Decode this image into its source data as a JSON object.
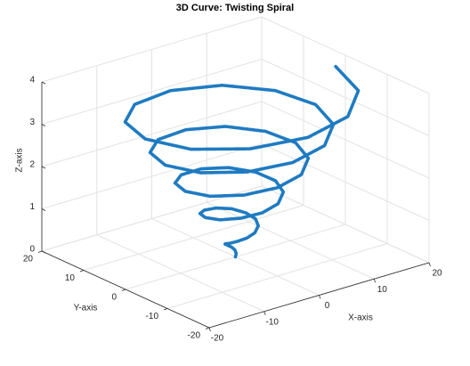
{
  "chart_data": {
    "type": "line3d",
    "title": "3D Curve: Twisting Spiral",
    "xlabel": "X-axis",
    "ylabel": "Y-axis",
    "zlabel": "Z-axis",
    "xlim": [
      -20,
      20
    ],
    "ylim": [
      -20,
      20
    ],
    "zlim": [
      0,
      4
    ],
    "xticks": [
      -20,
      -10,
      0,
      10,
      20
    ],
    "yticks": [
      -20,
      -10,
      0,
      10,
      20
    ],
    "zticks": [
      0,
      1,
      2,
      3,
      4
    ],
    "grid": true,
    "series": [
      {
        "color": "#1f7bc1",
        "x": [
          0,
          0.26,
          0.3,
          0,
          -0.61,
          -1.32,
          -1.82,
          -1.84,
          -1.22,
          0,
          1.52,
          2.89,
          3.65,
          3.42,
          2.13,
          0,
          -2.43,
          -4.48,
          -5.47,
          -5.01,
          -3.04,
          0,
          3.35,
          6.05,
          7.3,
          6.58,
          3.95,
          0,
          -4.26,
          -7.64,
          -9.12,
          -8.16,
          -4.87,
          0,
          5.17,
          9.21,
          10.94,
          9.74,
          5.78,
          0,
          -6.08,
          -10.79,
          -12.77,
          -11.32,
          -6.69,
          0,
          6.99,
          12.38,
          14.59,
          12.9,
          7.6,
          0,
          -7.91,
          -13.95,
          -16.42,
          -14.48,
          -8.51,
          0,
          8.82,
          15.54,
          18.24
        ],
        "y": [
          0,
          0.15,
          0.53,
          0.91,
          1.05,
          0.76,
          0,
          -1.06,
          -2.1,
          -2.74,
          -2.63,
          -1.67,
          0,
          1.98,
          3.69,
          4.56,
          4.21,
          2.59,
          0,
          -2.89,
          -5.27,
          -6.38,
          -5.79,
          -3.5,
          0,
          3.8,
          6.84,
          8.21,
          7.37,
          4.41,
          0,
          -4.71,
          -8.43,
          -10.03,
          -8.95,
          -5.32,
          0,
          5.63,
          10,
          11.86,
          10.53,
          6.23,
          0,
          -6.54,
          -11.59,
          -13.68,
          -12.11,
          -7.15,
          0,
          7.45,
          13.16,
          15.5,
          13.69,
          8.06,
          0,
          -8.36,
          -14.74,
          -17.33,
          -15.27,
          -8.97,
          0
        ],
        "z": [
          0,
          0.06,
          0.13,
          0.19,
          0.25,
          0.32,
          0.38,
          0.44,
          0.51,
          0.57,
          0.63,
          0.7,
          0.76,
          0.82,
          0.89,
          0.95,
          1.01,
          1.08,
          1.14,
          1.2,
          1.27,
          1.33,
          1.39,
          1.46,
          1.52,
          1.58,
          1.65,
          1.71,
          1.77,
          1.84,
          1.9,
          1.96,
          2.03,
          2.09,
          2.15,
          2.22,
          2.28,
          2.34,
          2.41,
          2.47,
          2.53,
          2.6,
          2.66,
          2.72,
          2.79,
          2.85,
          2.91,
          2.98,
          3.04,
          3.1,
          3.17,
          3.23,
          3.29,
          3.36,
          3.42,
          3.48,
          3.55,
          3.61,
          3.67,
          3.74,
          3.8
        ]
      }
    ]
  }
}
